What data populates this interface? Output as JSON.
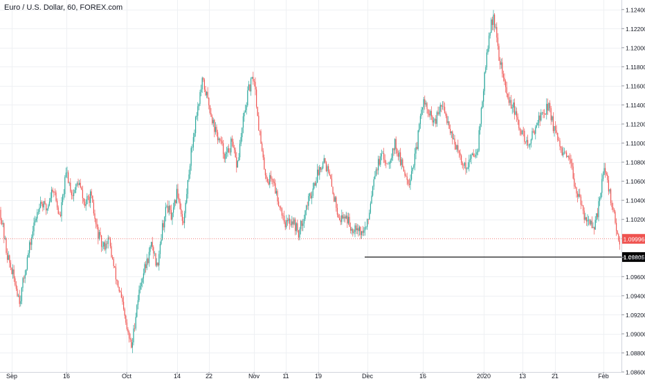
{
  "header": {
    "title": "Euro / U.S. Dollar, 60, FOREX.com"
  },
  "colors": {
    "up": "#26a69a",
    "down": "#ef5350",
    "grid": "#eef0f3",
    "axis_text": "#131722",
    "price_label_bg": "#ef5350",
    "level_label_bg": "#000000"
  },
  "chart_data": {
    "type": "candlestick",
    "title": "Euro / U.S. Dollar, 60, FOREX.com",
    "ylim": [
      1.086,
      1.125
    ],
    "y_ticks": [
      "1.12400",
      "1.12200",
      "1.12000",
      "1.11800",
      "1.11600",
      "1.11400",
      "1.11200",
      "1.11000",
      "1.10800",
      "1.10600",
      "1.10400",
      "1.10200",
      "1.09800",
      "1.09600",
      "1.09400",
      "1.09200",
      "1.09000",
      "1.08800",
      "1.08600"
    ],
    "x_ticks": [
      "Sep",
      "16",
      "Oct",
      "14",
      "22",
      "Nov",
      "11",
      "19",
      "Dec",
      "16",
      "2020",
      "13",
      "21",
      "Feb"
    ],
    "grid": true,
    "current_price": {
      "value": 1.09996,
      "label": "1.09996"
    },
    "horizontal_level": {
      "value": 1.09805,
      "label": "1.09805",
      "start_tick": "Dec"
    },
    "price_path": [
      [
        "Sep",
        1.103
      ],
      [
        "Sep",
        1.0985
      ],
      [
        "Sep",
        1.096
      ],
      [
        "Sep",
        1.0935
      ],
      [
        "Sep",
        1.0975
      ],
      [
        "Sep",
        1.101
      ],
      [
        "Sep",
        1.104
      ],
      [
        "Sep",
        1.103
      ],
      [
        "Sep",
        1.1055
      ],
      [
        "Sep",
        1.102
      ],
      [
        "16",
        1.107
      ],
      [
        "16",
        1.1045
      ],
      [
        "16",
        1.106
      ],
      [
        "16",
        1.1035
      ],
      [
        "16",
        1.1045
      ],
      [
        "16",
        1.101
      ],
      [
        "16",
        1.099
      ],
      [
        "16",
        1.1
      ],
      [
        "16",
        1.0965
      ],
      [
        "16",
        1.094
      ],
      [
        "Oct",
        1.0905
      ],
      [
        "Oct",
        1.0885
      ],
      [
        "Oct",
        1.093
      ],
      [
        "Oct",
        1.096
      ],
      [
        "Oct",
        1.0975
      ],
      [
        "Oct",
        1.0995
      ],
      [
        "Oct",
        1.097
      ],
      [
        "Oct",
        1.101
      ],
      [
        "Oct",
        1.1035
      ],
      [
        "Oct",
        1.102
      ],
      [
        "14",
        1.105
      ],
      [
        "14",
        1.1015
      ],
      [
        "14",
        1.108
      ],
      [
        "14",
        1.113
      ],
      [
        "14",
        1.1165
      ],
      [
        "22",
        1.114
      ],
      [
        "22",
        1.1115
      ],
      [
        "22",
        1.11
      ],
      [
        "22",
        1.1085
      ],
      [
        "22",
        1.11
      ],
      [
        "22",
        1.1075
      ],
      [
        "22",
        1.112
      ],
      [
        "22",
        1.1155
      ],
      [
        "Nov",
        1.117
      ],
      [
        "Nov",
        1.112
      ],
      [
        "Nov",
        1.108
      ],
      [
        "Nov",
        1.106
      ],
      [
        "Nov",
        1.1065
      ],
      [
        "Nov",
        1.1045
      ],
      [
        "Nov",
        1.103
      ],
      [
        "11",
        1.1015
      ],
      [
        "11",
        1.102
      ],
      [
        "11",
        1.1005
      ],
      [
        "11",
        1.103
      ],
      [
        "11",
        1.105
      ],
      [
        "19",
        1.107
      ],
      [
        "19",
        1.1085
      ],
      [
        "19",
        1.1065
      ],
      [
        "19",
        1.104
      ],
      [
        "19",
        1.102
      ],
      [
        "19",
        1.1025
      ],
      [
        "19",
        1.101
      ],
      [
        "19",
        1.1015
      ],
      [
        "19",
        1.1005
      ],
      [
        "Dec",
        1.1015
      ],
      [
        "Dec",
        1.107
      ],
      [
        "Dec",
        1.1085
      ],
      [
        "Dec",
        1.108
      ],
      [
        "Dec",
        1.11
      ],
      [
        "Dec",
        1.1075
      ],
      [
        "Dec",
        1.106
      ],
      [
        "Dec",
        1.109
      ],
      [
        "16",
        1.1145
      ],
      [
        "16",
        1.113
      ],
      [
        "16",
        1.112
      ],
      [
        "16",
        1.114
      ],
      [
        "16",
        1.1125
      ],
      [
        "16",
        1.1105
      ],
      [
        "16",
        1.1085
      ],
      [
        "16",
        1.1075
      ],
      [
        "16",
        1.1085
      ],
      [
        "16",
        1.1095
      ],
      [
        "2020",
        1.116
      ],
      [
        "2020",
        1.121
      ],
      [
        "2020",
        1.1235
      ],
      [
        "2020",
        1.1195
      ],
      [
        "2020",
        1.117
      ],
      [
        "2020",
        1.1145
      ],
      [
        "2020",
        1.114
      ],
      [
        "2020",
        1.112
      ],
      [
        "13",
        1.111
      ],
      [
        "13",
        1.1095
      ],
      [
        "13",
        1.112
      ],
      [
        "13",
        1.113
      ],
      [
        "13",
        1.114
      ],
      [
        "21",
        1.111
      ],
      [
        "21",
        1.1095
      ],
      [
        "21",
        1.1085
      ],
      [
        "21",
        1.108
      ],
      [
        "21",
        1.106
      ],
      [
        "21",
        1.104
      ],
      [
        "21",
        1.1025
      ],
      [
        "21",
        1.102
      ],
      [
        "21",
        1.1005
      ],
      [
        "21",
        1.1035
      ],
      [
        "Feb",
        1.1075
      ],
      [
        "Feb",
        1.106
      ],
      [
        "Feb",
        1.1045
      ],
      [
        "Feb",
        1.103
      ],
      [
        "Feb",
        1.0999
      ]
    ]
  }
}
